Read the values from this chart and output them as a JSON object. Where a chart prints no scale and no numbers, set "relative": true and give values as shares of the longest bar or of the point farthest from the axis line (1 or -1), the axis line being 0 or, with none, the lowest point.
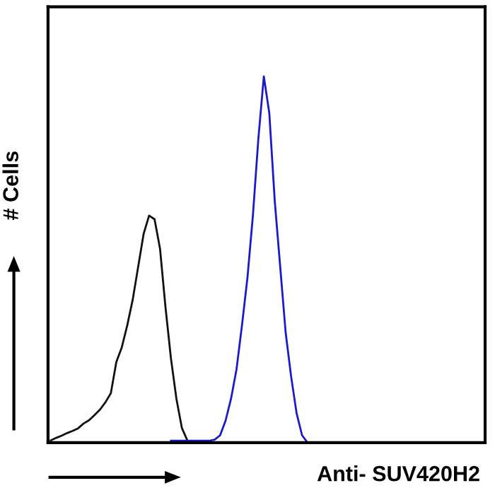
{
  "chart_data": {
    "type": "line",
    "relative": true,
    "xlabel": "Anti- SUV420H2",
    "ylabel": "# Cells",
    "grid": false,
    "legend": false,
    "marker": "none",
    "line_style": "solid",
    "categories": [
      null,
      null,
      null,
      null,
      null,
      null,
      null,
      null,
      null,
      null,
      null,
      null,
      null,
      null,
      null,
      null,
      null,
      null,
      null,
      null,
      null,
      null,
      null,
      null,
      null,
      null,
      null,
      null,
      null,
      null,
      null,
      null,
      null,
      null,
      null,
      null,
      null,
      null,
      null,
      null,
      null,
      null,
      null,
      null,
      null,
      null,
      null,
      null,
      null,
      null,
      null,
      null,
      null,
      null,
      null,
      null,
      null,
      null,
      null,
      null,
      null,
      null,
      null,
      null,
      null,
      null,
      null,
      null,
      null,
      null,
      null,
      null,
      null,
      null,
      null,
      null,
      null,
      null,
      null,
      null
    ],
    "series": [
      {
        "color": "#111111",
        "values": [
          0.006,
          0.013,
          0.019,
          0.026,
          0.032,
          0.039,
          0.052,
          0.061,
          0.075,
          0.09,
          0.11,
          0.135,
          0.22,
          0.26,
          0.32,
          0.39,
          0.48,
          0.57,
          0.62,
          0.61,
          0.53,
          0.37,
          0.23,
          0.12,
          0.04,
          0.006,
          null,
          null,
          null,
          null,
          null,
          null,
          null,
          null,
          null,
          null,
          null,
          null,
          null,
          null,
          null,
          null,
          null,
          null,
          null,
          null,
          null,
          null,
          null,
          null,
          null,
          null,
          null,
          null,
          null,
          null,
          null,
          null,
          null,
          null,
          null,
          null,
          null,
          null,
          null,
          null,
          null,
          null,
          null,
          null,
          null,
          null,
          null,
          null,
          null,
          null,
          null,
          null,
          null,
          null
        ]
      },
      {
        "color": "#1a1acc",
        "values": [
          null,
          null,
          null,
          null,
          null,
          null,
          null,
          null,
          null,
          null,
          null,
          null,
          null,
          null,
          null,
          null,
          null,
          null,
          null,
          null,
          null,
          null,
          0.005,
          0.005,
          0.005,
          0.005,
          0.005,
          0.005,
          0.005,
          0.005,
          0.008,
          0.02,
          0.06,
          0.12,
          0.2,
          0.32,
          0.45,
          0.62,
          0.83,
          1.0,
          0.9,
          0.66,
          0.48,
          0.3,
          0.18,
          0.08,
          0.02,
          0,
          0,
          null,
          null,
          null,
          null,
          null,
          null,
          null,
          null,
          null,
          null,
          null,
          null,
          null,
          null,
          null,
          null,
          null,
          null,
          null,
          null,
          null,
          null,
          null,
          null,
          null,
          null,
          null,
          null,
          null,
          null,
          null
        ]
      }
    ]
  }
}
